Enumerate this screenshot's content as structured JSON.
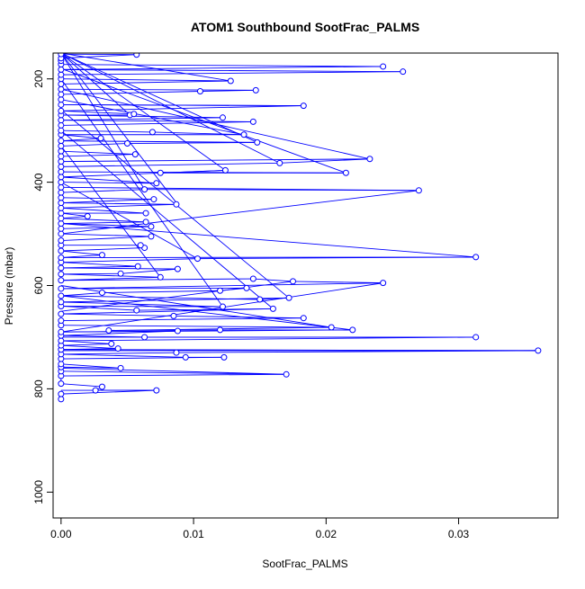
{
  "chart_data": {
    "type": "scatter",
    "title": "ATOM1 Southbound SootFrac_PALMS",
    "xlabel": "SootFrac_PALMS",
    "ylabel": "Pressure (mbar)",
    "xlim": [
      -0.0006,
      0.0375
    ],
    "ylim": [
      1050,
      150
    ],
    "y_reversed": true,
    "x_ticks": [
      0.0,
      0.01,
      0.02,
      0.03
    ],
    "x_tick_labels": [
      "0.00",
      "0.01",
      "0.02",
      "0.03"
    ],
    "y_ticks": [
      200,
      400,
      600,
      800,
      1000
    ],
    "y_tick_labels": [
      "200",
      "400",
      "600",
      "800",
      "1000"
    ],
    "grid": false,
    "legend": "none",
    "colors": {
      "series": "#0000ff",
      "axis": "#000000",
      "background": "#ffffff"
    },
    "series": [
      {
        "points": [
          [
            0.0,
            820
          ],
          [
            0.0,
            810
          ],
          [
            0.0072,
            803
          ],
          [
            0.0026,
            803
          ],
          [
            0.0031,
            796
          ],
          [
            0.0,
            790
          ],
          [
            0.0,
            775
          ],
          [
            0.017,
            772
          ],
          [
            0.0,
            766
          ],
          [
            0.0,
            758
          ],
          [
            0.0045,
            760
          ],
          [
            0.0,
            752
          ],
          [
            0.0,
            742
          ],
          [
            0.0123,
            739
          ],
          [
            0.0094,
            739
          ],
          [
            0.0,
            733
          ],
          [
            0.0087,
            730
          ],
          [
            0.036,
            726
          ],
          [
            0.0,
            724
          ],
          [
            0.0043,
            722
          ],
          [
            0.0,
            716
          ],
          [
            0.0038,
            713
          ],
          [
            0.0,
            707
          ],
          [
            0.0313,
            700
          ],
          [
            0.0063,
            700
          ],
          [
            0.0,
            697
          ],
          [
            0.0088,
            688
          ],
          [
            0.0,
            690
          ],
          [
            0.022,
            686
          ],
          [
            0.012,
            686
          ],
          [
            0.0036,
            687
          ],
          [
            0.0204,
            681
          ],
          [
            0.0,
            677
          ],
          [
            0.0,
            668
          ],
          [
            0.0183,
            663
          ],
          [
            0.0085,
            659
          ],
          [
            0.0,
            655
          ],
          [
            0.016,
            645
          ],
          [
            0.0057,
            648
          ],
          [
            0.0,
            640
          ],
          [
            0.0122,
            641
          ],
          [
            0.0,
            632
          ],
          [
            0.0172,
            624
          ],
          [
            0.015,
            627
          ],
          [
            0.0,
            620
          ],
          [
            0.0031,
            614
          ],
          [
            0.012,
            610
          ],
          [
            0.014,
            605
          ],
          [
            0.0,
            606
          ],
          [
            0.0243,
            595
          ],
          [
            0.0175,
            592
          ],
          [
            0.0145,
            587
          ],
          [
            0.0,
            590
          ],
          [
            0.0075,
            584
          ],
          [
            0.0,
            578
          ],
          [
            0.0045,
            577
          ],
          [
            0.0088,
            568
          ],
          [
            0.0,
            566
          ],
          [
            0.0058,
            563
          ],
          [
            0.0,
            555
          ],
          [
            0.0103,
            548
          ],
          [
            0.0313,
            545
          ],
          [
            0.0,
            546
          ],
          [
            0.0031,
            541
          ],
          [
            0.0,
            533
          ],
          [
            0.0063,
            527
          ],
          [
            0.006,
            522
          ],
          [
            0.0,
            522
          ],
          [
            0.0,
            513
          ],
          [
            0.0068,
            505
          ],
          [
            0.0,
            500
          ],
          [
            0.0,
            490
          ],
          [
            0.0068,
            486
          ],
          [
            0.0,
            480
          ],
          [
            0.0064,
            477
          ],
          [
            0.0,
            470
          ],
          [
            0.002,
            466
          ],
          [
            0.0,
            460
          ],
          [
            0.0064,
            460
          ],
          [
            0.0,
            450
          ],
          [
            0.0087,
            443
          ],
          [
            0.0,
            440
          ],
          [
            0.007,
            433
          ],
          [
            0.0,
            430
          ],
          [
            0.0,
            420
          ],
          [
            0.0063,
            414
          ],
          [
            0.027,
            416
          ],
          [
            0.0,
            410
          ],
          [
            0.0,
            400
          ],
          [
            0.0072,
            402
          ],
          [
            0.0,
            390
          ],
          [
            0.0124,
            377
          ],
          [
            0.0075,
            382
          ],
          [
            0.0215,
            382
          ],
          [
            0.0,
            380
          ],
          [
            0.0,
            370
          ],
          [
            0.0165,
            363
          ],
          [
            0.0233,
            355
          ],
          [
            0.0,
            360
          ],
          [
            0.0,
            350
          ],
          [
            0.0056,
            346
          ],
          [
            0.0,
            340
          ],
          [
            0.0,
            330
          ],
          [
            0.005,
            325
          ],
          [
            0.0148,
            323
          ],
          [
            0.0,
            320
          ],
          [
            0.003,
            315
          ],
          [
            0.0,
            308
          ],
          [
            0.0138,
            308
          ],
          [
            0.0069,
            303
          ],
          [
            0.0,
            300
          ],
          [
            0.0,
            290
          ],
          [
            0.0145,
            283
          ],
          [
            0.0,
            280
          ],
          [
            0.0122,
            275
          ],
          [
            0.0,
            270
          ],
          [
            0.0052,
            270
          ],
          [
            0.0055,
            268
          ],
          [
            0.0,
            262
          ],
          [
            0.0183,
            252
          ],
          [
            0.0,
            250
          ],
          [
            0.0,
            240
          ],
          [
            0.0,
            230
          ],
          [
            0.0105,
            224
          ],
          [
            0.0147,
            222
          ],
          [
            0.0,
            220
          ],
          [
            0.0,
            210
          ],
          [
            0.0128,
            204
          ],
          [
            0.0,
            200
          ],
          [
            0.0,
            192
          ],
          [
            0.0258,
            186
          ],
          [
            0.0,
            182
          ],
          [
            0.0243,
            176
          ],
          [
            0.0,
            172
          ],
          [
            0.0,
            165
          ],
          [
            0.0,
            160
          ],
          [
            0.0057,
            153
          ],
          [
            0.0,
            152
          ]
        ],
        "extra_segments": [
          [
            [
              0.0,
              150
            ],
            [
              0.0243,
              150
            ]
          ],
          [
            [
              0.0,
              150
            ],
            [
              0.0258,
              150
            ]
          ],
          [
            [
              0.0,
              180
            ],
            [
              0.0215,
              382
            ]
          ],
          [
            [
              0.0,
              220
            ],
            [
              0.0233,
              355
            ]
          ],
          [
            [
              0.0,
              150
            ],
            [
              0.0148,
              323
            ]
          ],
          [
            [
              0.0,
              260
            ],
            [
              0.0172,
              624
            ]
          ],
          [
            [
              0.0,
              300
            ],
            [
              0.016,
              645
            ]
          ],
          [
            [
              0.0,
              150
            ],
            [
              0.0088,
              443
            ]
          ],
          [
            [
              0.0,
              200
            ],
            [
              0.0122,
              641
            ]
          ],
          [
            [
              0.0,
              480
            ],
            [
              0.0313,
              545
            ]
          ],
          [
            [
              0.0,
              500
            ],
            [
              0.027,
              416
            ]
          ],
          [
            [
              0.0,
              690
            ],
            [
              0.0243,
              595
            ]
          ],
          [
            [
              0.0,
              700
            ],
            [
              0.0313,
              700
            ]
          ],
          [
            [
              0.0,
              726
            ],
            [
              0.036,
              726
            ]
          ],
          [
            [
              0.0,
              760
            ],
            [
              0.0172,
              772
            ]
          ],
          [
            [
              0.0,
              803
            ],
            [
              0.0072,
              803
            ]
          ],
          [
            [
              0.0,
              150
            ],
            [
              0.0128,
              204
            ]
          ],
          [
            [
              0.0,
              150
            ],
            [
              0.0052,
              270
            ]
          ],
          [
            [
              0.0,
              250
            ],
            [
              0.0183,
              252
            ]
          ],
          [
            [
              0.0,
              150
            ],
            [
              0.0124,
              377
            ]
          ],
          [
            [
              0.0,
              330
            ],
            [
              0.0075,
              584
            ]
          ],
          [
            [
              0.0,
              150
            ],
            [
              0.0063,
              414
            ]
          ],
          [
            [
              0.0,
              400
            ],
            [
              0.0103,
              548
            ]
          ],
          [
            [
              0.0,
              600
            ],
            [
              0.0204,
              681
            ]
          ],
          [
            [
              0.0,
              620
            ],
            [
              0.022,
              686
            ]
          ],
          [
            [
              0.0,
              650
            ],
            [
              0.0175,
              592
            ]
          ],
          [
            [
              0.0,
              150
            ],
            [
              0.0165,
              363
            ]
          ],
          [
            [
              0.0,
              240
            ],
            [
              0.0138,
              308
            ]
          ]
        ]
      }
    ]
  }
}
